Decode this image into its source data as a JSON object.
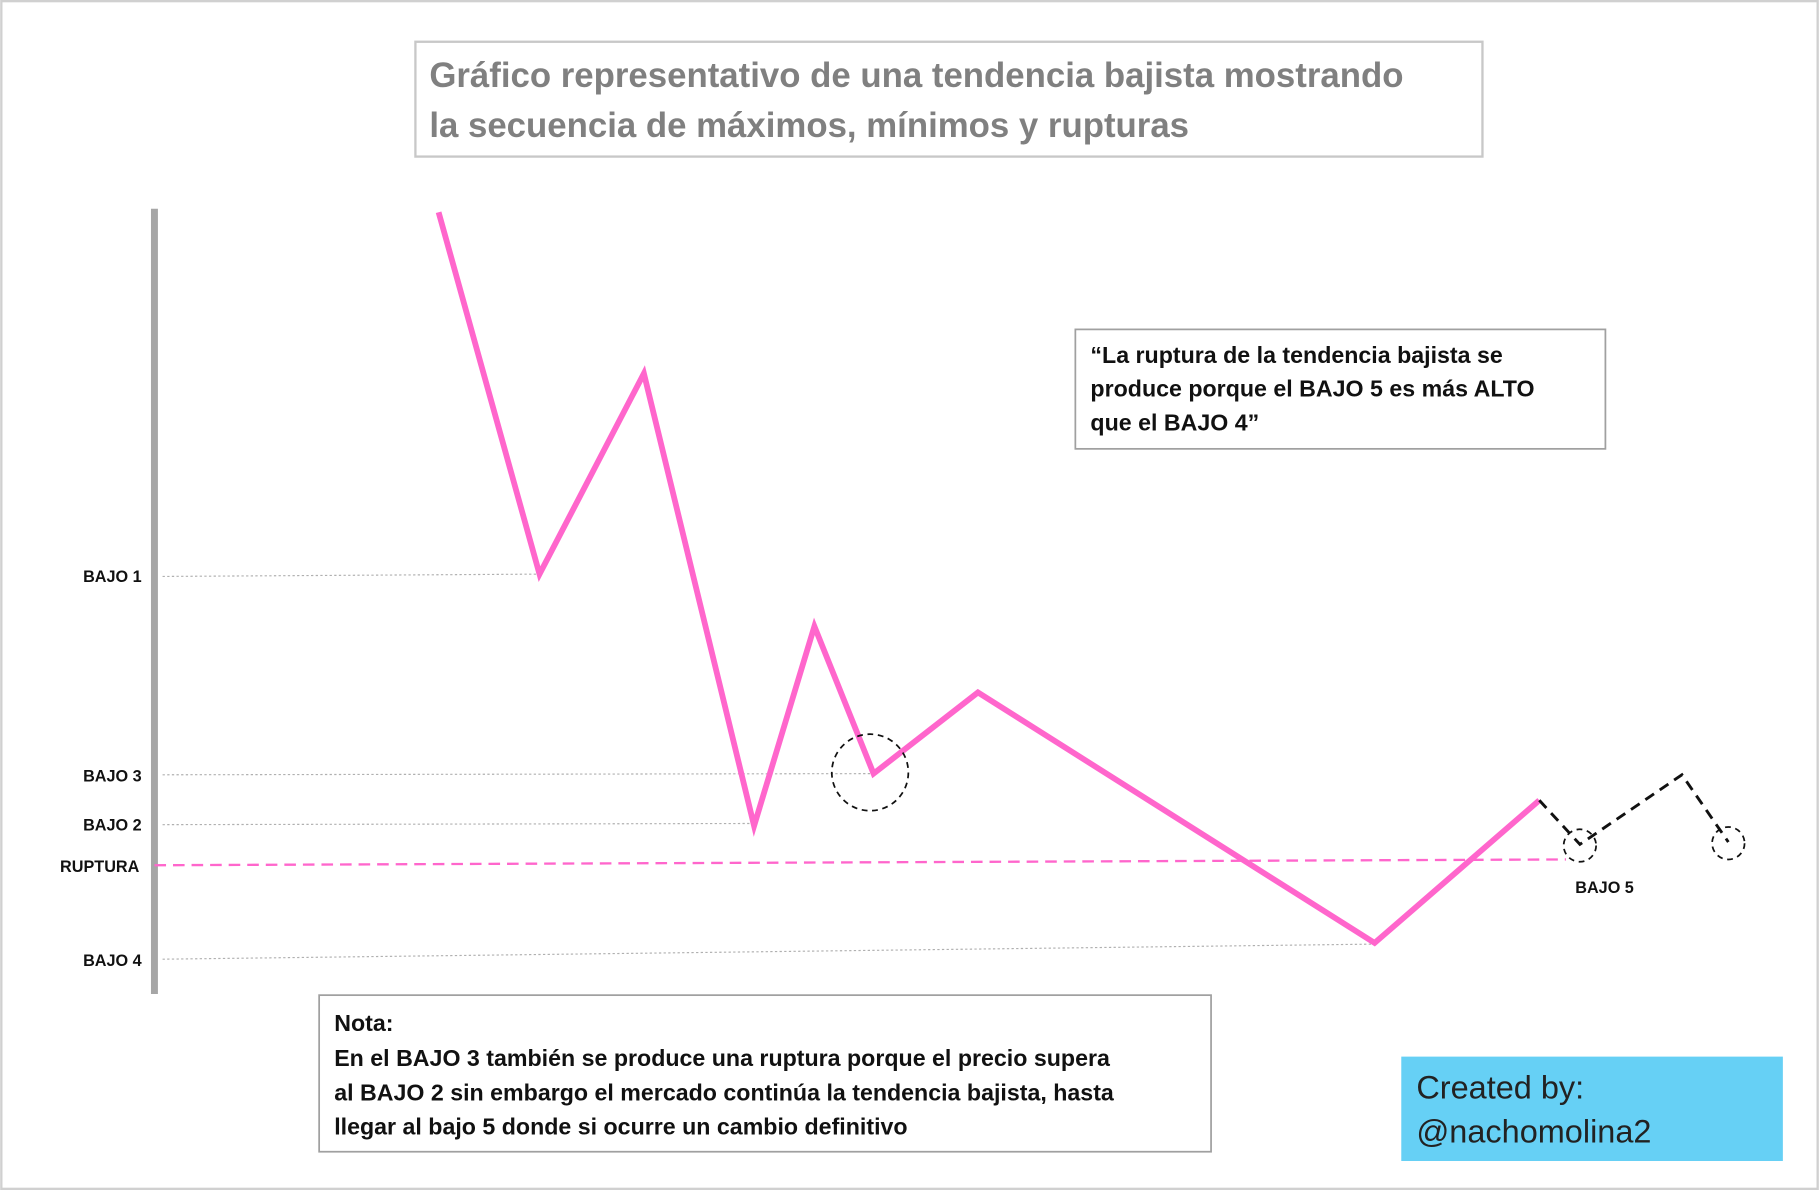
{
  "title": [
    "Gráfico representativo de una tendencia bajista mostrando",
    "la secuencia de máximos, mínimos y rupturas"
  ],
  "levels": {
    "bajo_1": "BAJO 1",
    "bajo_3": "BAJO 3",
    "bajo_2": "BAJO 2",
    "ruptura": "RUPTURA",
    "bajo_4": "BAJO 4",
    "bajo_5": "BAJO 5"
  },
  "quote": [
    "“La ruptura de la tendencia bajista se",
    "produce porque el BAJO 5 es más ALTO",
    "que el BAJO 4”"
  ],
  "note": {
    "heading": "Nota:",
    "lines": [
      "En el BAJO 3 también se produce una ruptura porque el precio supera",
      "al BAJO 2 sin embargo el mercado continúa la tendencia bajista, hasta",
      "llegar al bajo 5 donde si ocurre un cambio definitivo"
    ]
  },
  "credit": [
    "Created by:",
    "@nachomolina2"
  ]
}
